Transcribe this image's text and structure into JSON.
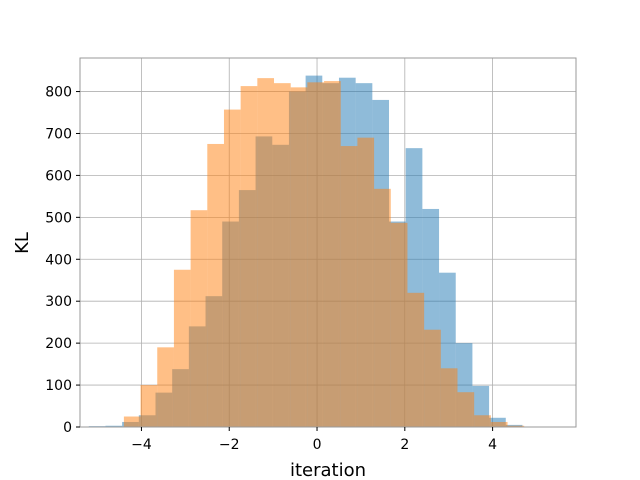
{
  "chart_data": {
    "type": "histogram",
    "xlabel": "iteration",
    "ylabel": "KL",
    "xlim": [
      -5.4,
      5.9
    ],
    "ylim": [
      0,
      880
    ],
    "xticks": [
      -4,
      -2,
      0,
      2,
      4
    ],
    "yticks": [
      0,
      100,
      200,
      300,
      400,
      500,
      600,
      700,
      800
    ],
    "grid": true,
    "bin_edges": [
      -5.2,
      -4.82,
      -4.44,
      -4.06,
      -3.68,
      -3.3,
      -2.92,
      -2.54,
      -2.16,
      -1.78,
      -1.4,
      -1.02,
      -0.64,
      -0.26,
      0.12,
      0.5,
      0.88,
      1.26,
      1.64,
      2.02,
      2.4,
      2.78,
      3.16,
      3.54,
      3.92,
      4.3,
      4.68,
      5.06
    ],
    "series": [
      {
        "color": "#1f77b4",
        "alpha": 0.5,
        "values": [
          2,
          3,
          12,
          28,
          82,
          138,
          240,
          312,
          490,
          565,
          693,
          673,
          800,
          838,
          820,
          833,
          820,
          780,
          490,
          665,
          520,
          368,
          200,
          98,
          22,
          5,
          1
        ]
      },
      {
        "color": "#ff7f0e",
        "alpha": 0.5,
        "bin_edges": [
          -4.4,
          -4.02,
          -3.64,
          -3.26,
          -2.88,
          -2.5,
          -2.12,
          -1.74,
          -1.36,
          -0.98,
          -0.6,
          -0.22,
          0.16,
          0.54,
          0.92,
          1.3,
          1.68,
          2.06,
          2.44,
          2.82,
          3.2,
          3.58,
          3.96,
          4.34,
          4.72,
          5.1
        ],
        "values": [
          25,
          100,
          190,
          375,
          517,
          675,
          757,
          813,
          832,
          820,
          810,
          822,
          825,
          670,
          690,
          568,
          487,
          320,
          232,
          140,
          83,
          28,
          12,
          3,
          1
        ]
      }
    ]
  }
}
